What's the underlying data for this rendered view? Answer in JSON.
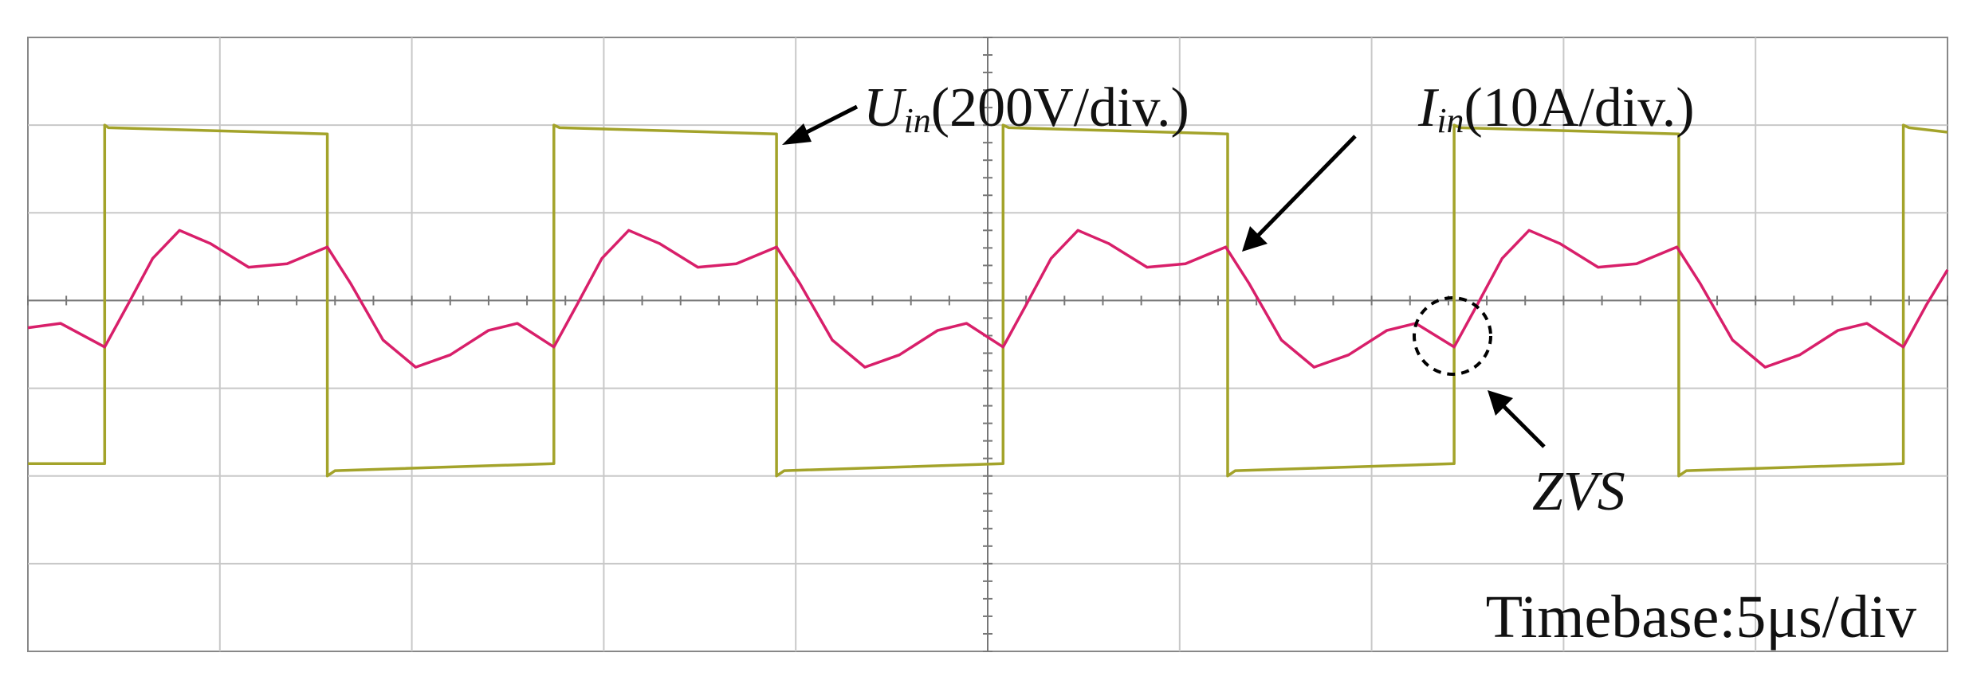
{
  "chart_data": {
    "type": "line",
    "xlim": [
      0,
      10
    ],
    "ylim": [
      -4,
      3
    ],
    "grid": true,
    "annotations": [
      {
        "text": "U",
        "sub": "in",
        "rest": "(200V/div.)"
      },
      {
        "text": "I",
        "sub": "in",
        "rest": "(10A/div.)"
      },
      {
        "text": "ZVS"
      },
      {
        "text": "Timebase:5μs/div"
      }
    ],
    "series": [
      {
        "color": "#a3a32a",
        "x": [
          0,
          0.4,
          0.4,
          0.42,
          1.56,
          1.56,
          1.6,
          2.74,
          2.74,
          2.77,
          3.9,
          3.9,
          3.94,
          5.08,
          5.08,
          5.11,
          6.25,
          6.25,
          6.29,
          7.43,
          7.43,
          7.46,
          8.6,
          8.6,
          8.64,
          9.77,
          9.77,
          9.8,
          10
        ],
        "values": [
          -1.86,
          -1.86,
          2.0,
          1.97,
          1.9,
          -2.0,
          -1.94,
          -1.86,
          2.0,
          1.97,
          1.9,
          -2.0,
          -1.94,
          -1.86,
          2.0,
          1.97,
          1.9,
          -2.0,
          -1.94,
          -1.86,
          2.0,
          1.97,
          1.9,
          -2.0,
          -1.94,
          -1.86,
          2.0,
          1.97,
          1.92
        ]
      },
      {
        "color": "#d81f6a",
        "x": [
          0,
          0.17,
          0.4,
          0.52,
          0.65,
          0.79,
          0.95,
          1.15,
          1.35,
          1.56,
          1.68,
          1.85,
          2.02,
          2.2,
          2.4,
          2.55,
          2.74,
          2.86,
          2.99,
          3.13,
          3.29,
          3.49,
          3.69,
          3.9,
          4.02,
          4.19,
          4.36,
          4.54,
          4.74,
          4.89,
          5.08,
          5.2,
          5.33,
          5.47,
          5.63,
          5.83,
          6.03,
          6.24,
          6.36,
          6.53,
          6.7,
          6.88,
          7.08,
          7.23,
          7.43,
          7.55,
          7.68,
          7.82,
          7.98,
          8.18,
          8.38,
          8.59,
          8.71,
          8.88,
          9.05,
          9.23,
          9.43,
          9.58,
          9.77,
          9.89,
          10
        ],
        "values": [
          -0.31,
          -0.26,
          -0.53,
          -0.05,
          0.48,
          0.8,
          0.65,
          0.38,
          0.42,
          0.61,
          0.2,
          -0.45,
          -0.76,
          -0.62,
          -0.34,
          -0.26,
          -0.53,
          -0.05,
          0.48,
          0.8,
          0.65,
          0.38,
          0.42,
          0.61,
          0.2,
          -0.45,
          -0.76,
          -0.62,
          -0.34,
          -0.26,
          -0.53,
          -0.05,
          0.48,
          0.8,
          0.65,
          0.38,
          0.42,
          0.61,
          0.2,
          -0.45,
          -0.76,
          -0.62,
          -0.34,
          -0.26,
          -0.53,
          -0.05,
          0.48,
          0.8,
          0.65,
          0.38,
          0.42,
          0.61,
          0.2,
          -0.45,
          -0.76,
          -0.62,
          -0.34,
          -0.26,
          -0.53,
          -0.05,
          0.35
        ]
      }
    ]
  }
}
